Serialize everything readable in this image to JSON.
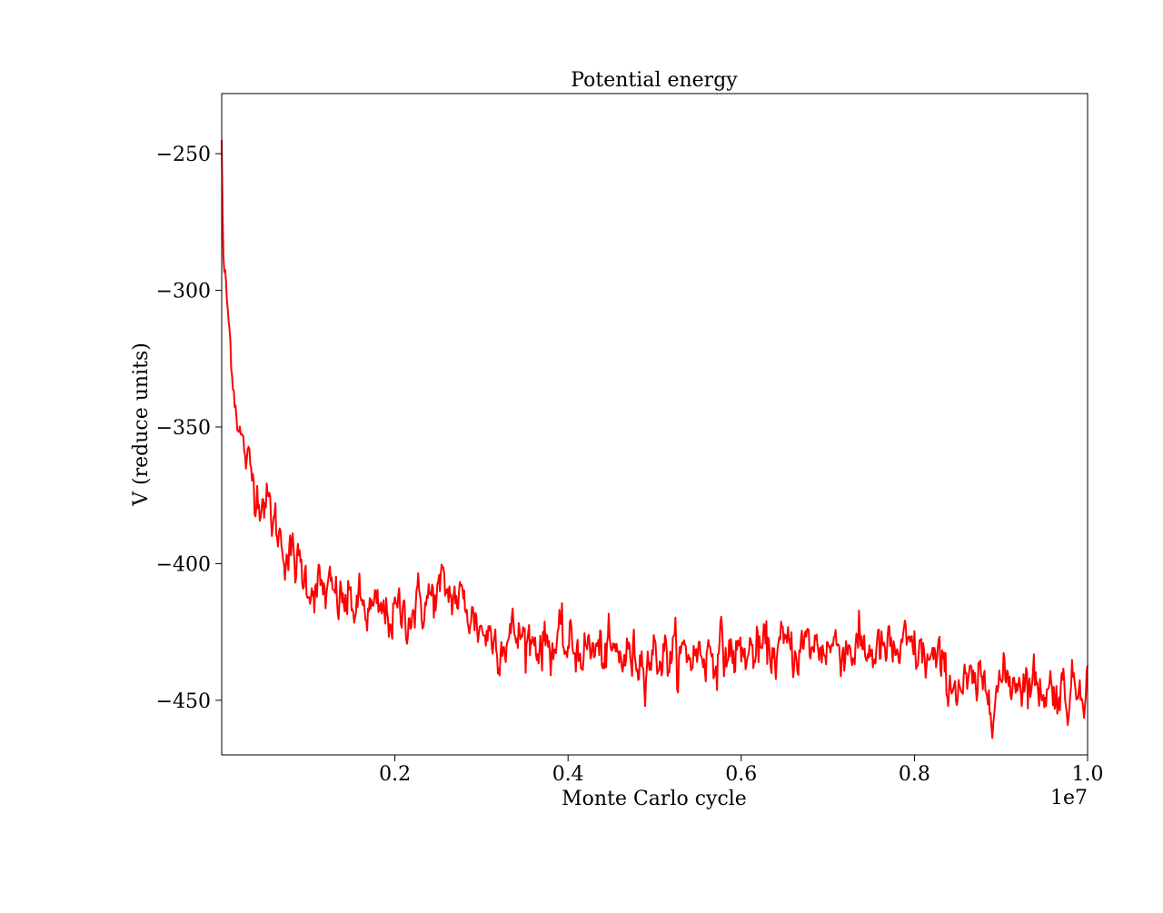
{
  "figure": {
    "title": "Potential energy",
    "xlabel": "Monte Carlo cycle",
    "ylabel": "V (reduce units)",
    "x_offset_label": "1e7"
  },
  "colors": {
    "line": "#ff0000",
    "axes": "#000000",
    "background": "#ffffff"
  },
  "chart_data": {
    "type": "line",
    "title": "Potential energy",
    "xlabel": "Monte Carlo cycle",
    "ylabel": "V (reduce units)",
    "x_scale_note": "1e7",
    "xlim": [
      0,
      10000000
    ],
    "ylim": [
      -470,
      -228
    ],
    "grid": false,
    "x_ticks": [
      2000000,
      4000000,
      6000000,
      8000000,
      10000000
    ],
    "x_tick_labels": [
      "0.2",
      "0.4",
      "0.6",
      "0.8",
      "1.0"
    ],
    "y_ticks": [
      -250,
      -300,
      -350,
      -400,
      -450
    ],
    "y_tick_labels": [
      "−250",
      "−300",
      "−350",
      "−400",
      "−450"
    ],
    "series": [
      {
        "color": "#ff0000",
        "x": [
          0,
          10000,
          20000,
          50000,
          100000,
          150000,
          200000,
          300000,
          400000,
          500000,
          600000,
          700000,
          800000,
          900000,
          1000000,
          1200000,
          1400000,
          1600000,
          1800000,
          2000000,
          2200000,
          2400000,
          2550000,
          2700000,
          2850000,
          3000000,
          3200000,
          3400000,
          3600000,
          3800000,
          4000000,
          4200000,
          4500000,
          4800000,
          5000000,
          5300000,
          5600000,
          6000000,
          6300000,
          6600000,
          6900000,
          7200000,
          7500000,
          7800000,
          8000000,
          8200000,
          8400000,
          8600000,
          8800000,
          9000000,
          9200000,
          9400000,
          9600000,
          9800000,
          10000000
        ],
        "values": [
          -245,
          -270,
          -290,
          -300,
          -320,
          -338,
          -350,
          -365,
          -372,
          -376,
          -385,
          -392,
          -398,
          -402,
          -406,
          -411,
          -414,
          -416,
          -419,
          -419,
          -417,
          -413,
          -410,
          -412,
          -417,
          -424,
          -428,
          -426,
          -428,
          -429,
          -431,
          -431,
          -434,
          -434,
          -433,
          -434,
          -432,
          -433,
          -432,
          -431,
          -430,
          -430,
          -432,
          -433,
          -432,
          -436,
          -442,
          -446,
          -446,
          -444,
          -441,
          -444,
          -446,
          -447,
          -440
        ]
      }
    ]
  }
}
